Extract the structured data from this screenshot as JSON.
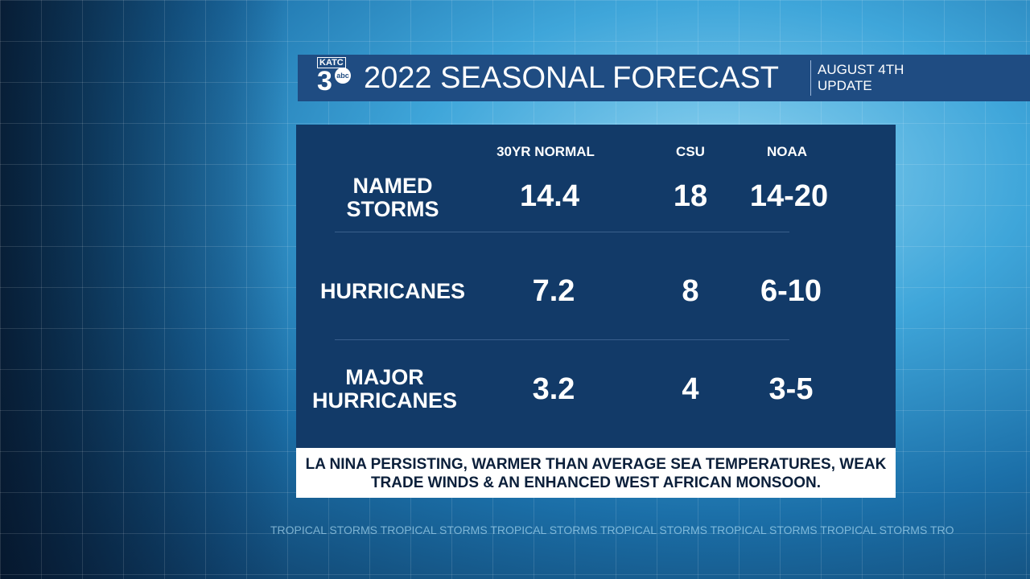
{
  "header": {
    "logo_text": "KATC 3 abc",
    "title": "2022 SEASONAL FORECAST",
    "update": "AUGUST 4TH UPDATE"
  },
  "table": {
    "columns": [
      "30YR NORMAL",
      "CSU",
      "NOAA"
    ],
    "rows": [
      {
        "label": "NAMED STORMS",
        "values": [
          "14.4",
          "18",
          "14-20"
        ]
      },
      {
        "label": "HURRICANES",
        "values": [
          "7.2",
          "8",
          "6-10"
        ]
      },
      {
        "label": "MAJOR HURRICANES",
        "values": [
          "3.2",
          "4",
          "3-5"
        ]
      }
    ]
  },
  "note": "LA NINA PERSISTING, WARMER THAN AVERAGE SEA TEMPERATURES, WEAK TRADE WINDS & AN ENHANCED WEST AFRICAN MONSOON.",
  "ticker": "TROPICAL STORMS TROPICAL STORMS TROPICAL STORMS TROPICAL STORMS TROPICAL STORMS TROPICAL STORMS TRO"
}
